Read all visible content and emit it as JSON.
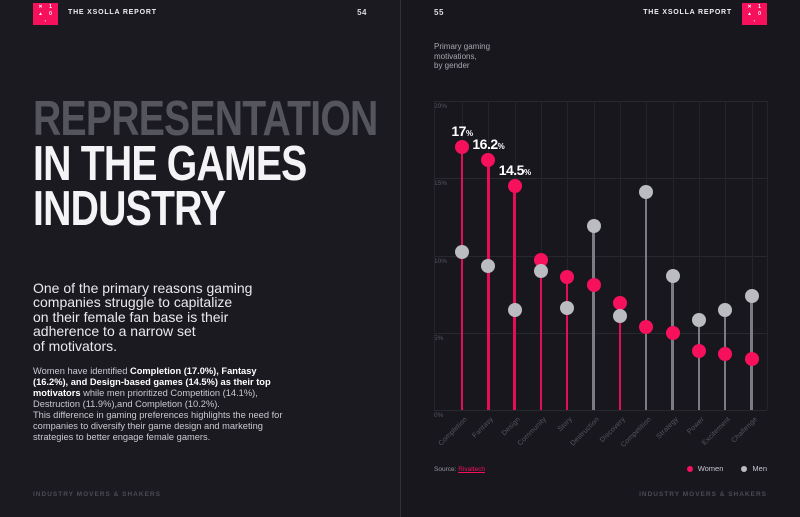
{
  "brand": {
    "name": "THE XSOLLA REPORT",
    "accent_color": "#f7105c",
    "logo_glyphs": [
      "✕",
      "1",
      "▴",
      "0",
      "▪"
    ]
  },
  "left_page": {
    "page_number": "54",
    "title_lines": [
      "REPRESENTATION",
      "IN THE GAMES",
      "INDUSTRY"
    ],
    "lead_lines": [
      "One of the primary reasons gaming",
      "companies struggle to capitalize",
      "on their female fan base is their",
      "adherence to a narrow set",
      "of motivators."
    ],
    "body": {
      "pre": "Women have identified ",
      "bold": "Completion (17.0%), Fantasy (16.2%), and Design-based games (14.5%) as their top motivators",
      "post": " while men prioritized Competition (14.1%), Destruction (11.9%),and Completion (10.2%).",
      "para2": "This difference in gaming preferences highlights the need for companies to diversify their game design and marketing strategies to better engage female gamers."
    },
    "footer": "INDUSTRY MOVERS & SHAKERS"
  },
  "right_page": {
    "page_number": "55",
    "footer": "INDUSTRY MOVERS & SHAKERS"
  },
  "chart_data": {
    "type": "lollipop",
    "title_lines": [
      "Primary gaming",
      "motivations,",
      "by gender"
    ],
    "categories": [
      "Completion",
      "Fantasy",
      "Design",
      "Community",
      "Story",
      "Destruction",
      "Discovery",
      "Competition",
      "Strategy",
      "Power",
      "Excitement",
      "Challenge"
    ],
    "series": [
      {
        "name": "Women",
        "color": "#f7105c",
        "stem_color": "#e30e56",
        "values": [
          17.0,
          16.2,
          14.5,
          9.7,
          8.6,
          8.1,
          6.9,
          5.4,
          5.0,
          3.8,
          3.6,
          3.3
        ]
      },
      {
        "name": "Men",
        "color": "#bbbbc2",
        "stem_color": "#7b7b84",
        "values": [
          10.2,
          9.3,
          6.5,
          9.0,
          6.6,
          11.9,
          6.1,
          14.1,
          8.7,
          5.8,
          6.5,
          7.4
        ]
      }
    ],
    "annotations": [
      {
        "category_index": 0,
        "number": "17",
        "suffix": "%"
      },
      {
        "category_index": 1,
        "number": "16.2",
        "suffix": "%"
      },
      {
        "category_index": 2,
        "number": "14.5",
        "suffix": "%"
      }
    ],
    "y_ticks": [
      {
        "value": 20,
        "label": "20%"
      },
      {
        "value": 15,
        "label": "15%"
      },
      {
        "value": 10,
        "label": "10%"
      },
      {
        "value": 5,
        "label": "5%"
      },
      {
        "value": 0,
        "label": "0%"
      }
    ],
    "ylim": [
      0,
      20
    ],
    "grid": true,
    "legend": [
      {
        "name": "Women",
        "color": "#f7105c"
      },
      {
        "name": "Men",
        "color": "#bbbbc2"
      }
    ],
    "legend_position": "bottom-right",
    "source": {
      "label": "Source:",
      "link": "Rivaltech"
    }
  }
}
